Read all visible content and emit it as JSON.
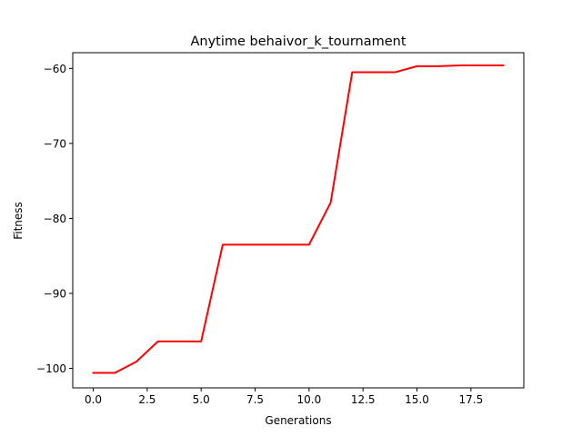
{
  "chart_data": {
    "type": "line",
    "title": "Anytime behaivor_k_tournament",
    "xlabel": "Generations",
    "ylabel": "Fitness",
    "xlim": [
      -0.95,
      19.95
    ],
    "ylim": [
      -102.6,
      -57.9
    ],
    "grid": false,
    "x_ticks": [
      0.0,
      2.5,
      5.0,
      7.5,
      10.0,
      12.5,
      15.0,
      17.5
    ],
    "x_tick_labels": [
      "0.0",
      "2.5",
      "5.0",
      "7.5",
      "10.0",
      "12.5",
      "15.0",
      "17.5"
    ],
    "y_ticks": [
      -100,
      -90,
      -80,
      -70,
      -60
    ],
    "y_tick_labels": [
      "−100",
      "−90",
      "−80",
      "−70",
      "−60"
    ],
    "series": [
      {
        "color": "#ff0000",
        "x": [
          0,
          1,
          2,
          3,
          4,
          5,
          6,
          7,
          8,
          9,
          10,
          11,
          12,
          13,
          14,
          15,
          16,
          17,
          18,
          19
        ],
        "y": [
          -100.6,
          -100.6,
          -99.1,
          -96.4,
          -96.4,
          -96.4,
          -83.5,
          -83.5,
          -83.5,
          -83.5,
          -83.5,
          -77.9,
          -60.5,
          -60.5,
          -60.5,
          -59.7,
          -59.7,
          -59.6,
          -59.6,
          -59.6
        ]
      }
    ]
  }
}
